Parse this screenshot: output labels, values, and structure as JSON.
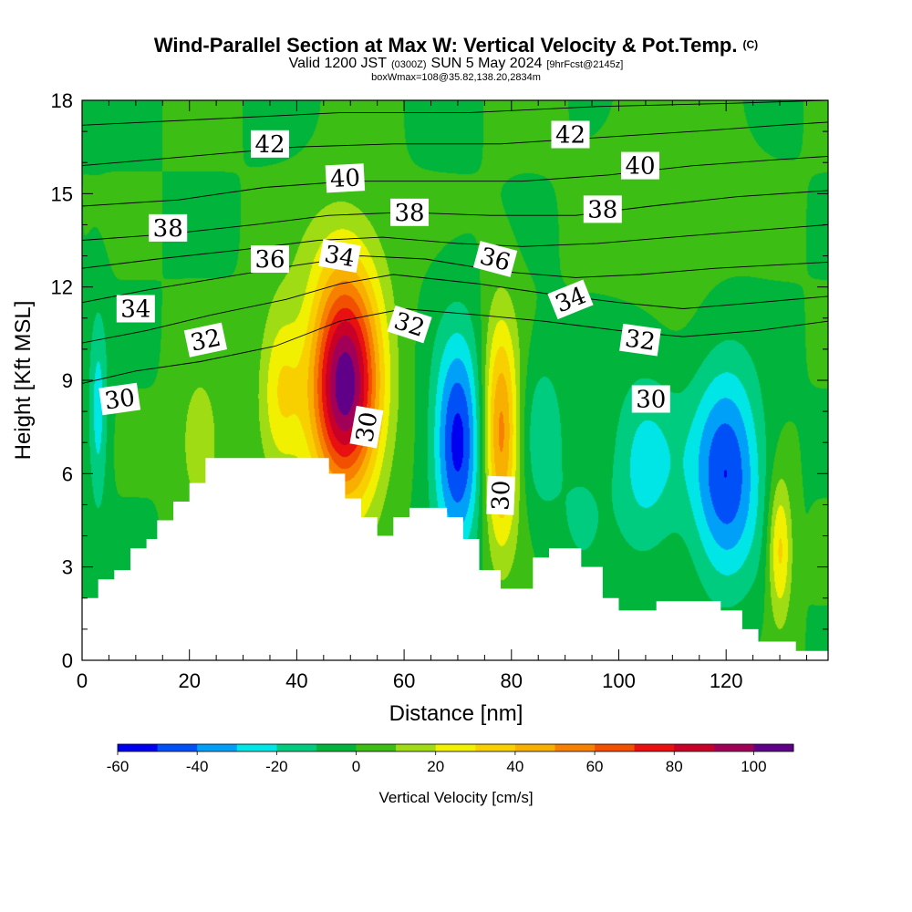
{
  "header": {
    "title_main": "Wind-Parallel Section at Max W: Vertical Velocity & Pot.Temp.",
    "title_mark": "(C)",
    "valid_prefix": "Valid 1200 JST",
    "valid_z": "(0300Z)",
    "valid_date": "SUN 5 May 2024",
    "valid_fcst": "[9hrFcst@2145z]",
    "box_info": "boxWmax=108@35.82,138.20,2834m"
  },
  "chart_data": {
    "type": "heatmap",
    "xlabel": "Distance [nm]",
    "ylabel": "Height [Kft MSL]",
    "xlim": [
      0,
      139
    ],
    "ylim": [
      0,
      18
    ],
    "x_ticks": [
      0,
      20,
      40,
      60,
      80,
      100,
      120
    ],
    "y_ticks": [
      0,
      3,
      6,
      9,
      12,
      15,
      18
    ],
    "colorbar": {
      "title": "Vertical Velocity [cm/s]",
      "ticks": [
        -60,
        -40,
        -20,
        0,
        20,
        40,
        60,
        80,
        100
      ],
      "levels": [
        -60,
        -50,
        -40,
        -30,
        -20,
        -10,
        0,
        10,
        20,
        30,
        40,
        50,
        60,
        70,
        80,
        90,
        100,
        110
      ],
      "colors": [
        "#0000f0",
        "#0050f8",
        "#00a0f8",
        "#00e6e6",
        "#00cc80",
        "#00b43c",
        "#3cbe14",
        "#a0dc14",
        "#f0f000",
        "#f8d000",
        "#f8b000",
        "#f88000",
        "#f05000",
        "#e81010",
        "#c80028",
        "#a00058",
        "#600088"
      ]
    },
    "background_value": 0,
    "terrain": [
      {
        "x": 0,
        "h": 2.0
      },
      {
        "x": 3,
        "h": 2.6
      },
      {
        "x": 6,
        "h": 2.9
      },
      {
        "x": 9,
        "h": 3.6
      },
      {
        "x": 12,
        "h": 3.9
      },
      {
        "x": 14,
        "h": 4.5
      },
      {
        "x": 17,
        "h": 5.1
      },
      {
        "x": 20,
        "h": 5.7
      },
      {
        "x": 23,
        "h": 6.5
      },
      {
        "x": 46,
        "h": 6.0
      },
      {
        "x": 49,
        "h": 5.2
      },
      {
        "x": 52,
        "h": 4.6
      },
      {
        "x": 55,
        "h": 4.0
      },
      {
        "x": 58,
        "h": 4.6
      },
      {
        "x": 61,
        "h": 4.9
      },
      {
        "x": 68,
        "h": 4.6
      },
      {
        "x": 71,
        "h": 3.9
      },
      {
        "x": 74,
        "h": 2.9
      },
      {
        "x": 78,
        "h": 2.3
      },
      {
        "x": 84,
        "h": 3.3
      },
      {
        "x": 87,
        "h": 3.6
      },
      {
        "x": 93,
        "h": 3.0
      },
      {
        "x": 97,
        "h": 2.0
      },
      {
        "x": 100,
        "h": 1.6
      },
      {
        "x": 107,
        "h": 1.9
      },
      {
        "x": 119,
        "h": 1.6
      },
      {
        "x": 123,
        "h": 1.0
      },
      {
        "x": 126,
        "h": 0.6
      },
      {
        "x": 133,
        "h": 0.3
      },
      {
        "x": 139,
        "h": 0.3
      }
    ],
    "features": [
      {
        "x": 49,
        "z": 8.8,
        "rx": 6.5,
        "rz": 3.5,
        "peak": 108
      },
      {
        "x": 78,
        "z": 7.3,
        "rx": 3.3,
        "rz": 3.6,
        "peak": 55
      },
      {
        "x": 130,
        "z": 3.6,
        "rx": 2.2,
        "rz": 2.3,
        "peak": 35
      },
      {
        "x": 70,
        "z": 7.0,
        "rx": 4.5,
        "rz": 3.4,
        "peak": -55
      },
      {
        "x": 120,
        "z": 6.0,
        "rx": 6.5,
        "rz": 3.4,
        "peak": -50
      },
      {
        "x": 105,
        "z": 6.3,
        "rx": 6.5,
        "rz": 2.9,
        "peak": -25
      },
      {
        "x": 86,
        "z": 7.2,
        "rx": 4.0,
        "rz": 2.6,
        "peak": -18
      },
      {
        "x": 3,
        "z": 8.0,
        "rx": 1.8,
        "rz": 3.2,
        "peak": -25
      },
      {
        "x": 37,
        "z": 8.8,
        "rx": 4.0,
        "rz": 2.8,
        "peak": 28
      },
      {
        "x": 22,
        "z": 7.0,
        "rx": 4.0,
        "rz": 2.3,
        "peak": 18
      },
      {
        "x": 93,
        "z": 4.6,
        "rx": 4.0,
        "rz": 1.8,
        "peak": -12
      },
      {
        "x": 48,
        "z": 13.0,
        "rx": 9.0,
        "rz": 2.2,
        "peak": 9
      },
      {
        "x": 110,
        "z": 15.0,
        "rx": 12.0,
        "rz": 3.0,
        "peak": 8
      }
    ],
    "theta_contours": [
      {
        "label": "30",
        "points": [
          [
            0,
            8.9
          ],
          [
            10,
            9.3
          ],
          [
            22,
            9.6
          ],
          [
            36,
            10.1
          ],
          [
            48,
            10.9
          ],
          [
            60,
            11.3
          ],
          [
            74,
            11.1
          ],
          [
            86,
            10.9
          ],
          [
            100,
            10.6
          ],
          [
            112,
            10.4
          ],
          [
            126,
            10.6
          ],
          [
            139,
            10.9
          ]
        ]
      },
      {
        "label": "32",
        "points": [
          [
            0,
            10.2
          ],
          [
            12,
            10.6
          ],
          [
            24,
            11.1
          ],
          [
            38,
            11.6
          ],
          [
            48,
            12.1
          ],
          [
            58,
            12.4
          ],
          [
            74,
            12.1
          ],
          [
            86,
            11.8
          ],
          [
            100,
            11.5
          ],
          [
            112,
            11.3
          ],
          [
            126,
            11.5
          ],
          [
            139,
            11.7
          ]
        ]
      },
      {
        "label": "34",
        "points": [
          [
            0,
            11.5
          ],
          [
            12,
            11.9
          ],
          [
            26,
            12.3
          ],
          [
            40,
            12.7
          ],
          [
            52,
            13.0
          ],
          [
            64,
            12.9
          ],
          [
            78,
            12.5
          ],
          [
            92,
            12.3
          ],
          [
            104,
            12.4
          ],
          [
            118,
            12.6
          ],
          [
            139,
            12.8
          ]
        ]
      },
      {
        "label": "36",
        "points": [
          [
            0,
            12.6
          ],
          [
            14,
            12.9
          ],
          [
            30,
            13.2
          ],
          [
            44,
            13.5
          ],
          [
            56,
            13.6
          ],
          [
            70,
            13.4
          ],
          [
            82,
            13.3
          ],
          [
            96,
            13.4
          ],
          [
            110,
            13.6
          ],
          [
            124,
            13.8
          ],
          [
            139,
            14.0
          ]
        ]
      },
      {
        "label": "38",
        "points": [
          [
            0,
            13.5
          ],
          [
            16,
            13.7
          ],
          [
            32,
            14.0
          ],
          [
            46,
            14.3
          ],
          [
            60,
            14.4
          ],
          [
            76,
            14.3
          ],
          [
            92,
            14.3
          ],
          [
            106,
            14.6
          ],
          [
            122,
            14.9
          ],
          [
            139,
            15.1
          ]
        ]
      },
      {
        "label": "40",
        "points": [
          [
            0,
            14.6
          ],
          [
            18,
            14.8
          ],
          [
            34,
            15.2
          ],
          [
            50,
            15.4
          ],
          [
            66,
            15.4
          ],
          [
            82,
            15.4
          ],
          [
            98,
            15.6
          ],
          [
            114,
            15.9
          ],
          [
            130,
            16.1
          ],
          [
            139,
            16.2
          ]
        ]
      },
      {
        "label": "42",
        "points": [
          [
            0,
            15.9
          ],
          [
            20,
            16.2
          ],
          [
            40,
            16.5
          ],
          [
            58,
            16.6
          ],
          [
            78,
            16.6
          ],
          [
            96,
            16.8
          ],
          [
            114,
            17.0
          ],
          [
            130,
            17.2
          ],
          [
            139,
            17.3
          ]
        ]
      },
      {
        "label": "",
        "points": [
          [
            0,
            17.2
          ],
          [
            24,
            17.4
          ],
          [
            48,
            17.6
          ],
          [
            72,
            17.6
          ],
          [
            96,
            17.8
          ],
          [
            120,
            17.9
          ],
          [
            139,
            18.0
          ]
        ]
      }
    ],
    "contour_labels": [
      {
        "text": "42",
        "x": 35,
        "z": 16.6,
        "rot": 0
      },
      {
        "text": "42",
        "x": 91,
        "z": 16.9,
        "rot": 0
      },
      {
        "text": "40",
        "x": 49,
        "z": 15.5,
        "rot": -3
      },
      {
        "text": "40",
        "x": 104,
        "z": 15.9,
        "rot": 0
      },
      {
        "text": "38",
        "x": 16,
        "z": 13.9,
        "rot": 0
      },
      {
        "text": "38",
        "x": 61,
        "z": 14.4,
        "rot": 0
      },
      {
        "text": "38",
        "x": 97,
        "z": 14.5,
        "rot": 0
      },
      {
        "text": "36",
        "x": 35,
        "z": 12.9,
        "rot": 0
      },
      {
        "text": "36",
        "x": 77,
        "z": 12.9,
        "rot": 15
      },
      {
        "text": "34",
        "x": 10,
        "z": 11.3,
        "rot": 0
      },
      {
        "text": "34",
        "x": 48,
        "z": 13.0,
        "rot": 10
      },
      {
        "text": "34",
        "x": 91,
        "z": 11.6,
        "rot": -22
      },
      {
        "text": "32",
        "x": 23,
        "z": 10.3,
        "rot": -12
      },
      {
        "text": "32",
        "x": 61,
        "z": 10.8,
        "rot": 18
      },
      {
        "text": "32",
        "x": 104,
        "z": 10.3,
        "rot": 8
      },
      {
        "text": "30",
        "x": 7,
        "z": 8.4,
        "rot": -8
      },
      {
        "text": "30",
        "x": 53,
        "z": 7.5,
        "rot": -80
      },
      {
        "text": "30",
        "x": 78,
        "z": 5.3,
        "rot": -88
      },
      {
        "text": "30",
        "x": 106,
        "z": 8.4,
        "rot": 0
      }
    ]
  }
}
